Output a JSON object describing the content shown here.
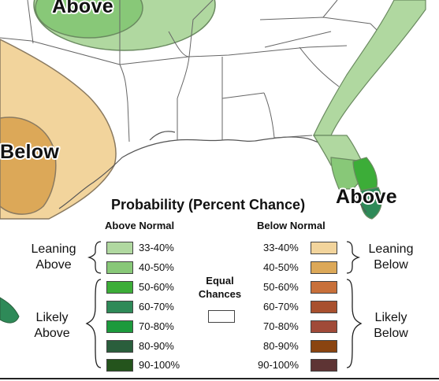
{
  "map_labels": {
    "above_north": "Above",
    "below_west": "Below",
    "above_florida": "Above"
  },
  "legend": {
    "title": "Probability (Percent Chance)",
    "above_header": "Above Normal",
    "below_header": "Below Normal",
    "equal_chances": "Equal Chances",
    "above_groups": {
      "leaning": "Leaning Above",
      "likely": "Likely Above"
    },
    "below_groups": {
      "leaning": "Leaning Below",
      "likely": "Likely Below"
    },
    "above_bins": [
      {
        "range": "33-40%",
        "color": "#b0d8a0"
      },
      {
        "range": "40-50%",
        "color": "#88c878"
      },
      {
        "range": "50-60%",
        "color": "#3cad38"
      },
      {
        "range": "60-70%",
        "color": "#2e8a58"
      },
      {
        "range": "70-80%",
        "color": "#1c9a3c"
      },
      {
        "range": "80-90%",
        "color": "#2a5e3c"
      },
      {
        "range": "90-100%",
        "color": "#24541c"
      }
    ],
    "below_bins": [
      {
        "range": "33-40%",
        "color": "#f2d49c"
      },
      {
        "range": "40-50%",
        "color": "#dca858"
      },
      {
        "range": "50-60%",
        "color": "#c8703a"
      },
      {
        "range": "60-70%",
        "color": "#a8502e"
      },
      {
        "range": "70-80%",
        "color": "#a04a38"
      },
      {
        "range": "80-90%",
        "color": "#8a4410"
      },
      {
        "range": "90-100%",
        "color": "#5e3434"
      }
    ],
    "equal_color": "#ffffff"
  },
  "colors": {
    "land": "#ffffff",
    "border": "#555555"
  }
}
